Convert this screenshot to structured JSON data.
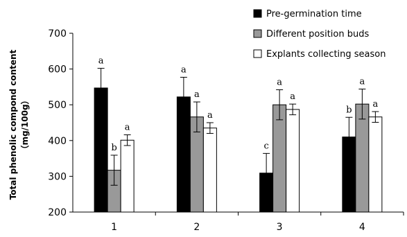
{
  "chart_data": {
    "type": "bar",
    "categories": [
      "1",
      "2",
      "3",
      "4"
    ],
    "ylabel_line1": "Total phenolic compond content",
    "ylabel_line2": "（mg/100g）",
    "ylim": [
      200,
      700
    ],
    "yticks": [
      200,
      300,
      400,
      500,
      600,
      700
    ],
    "grid": false,
    "legend_position": "top-right",
    "series": [
      {
        "name": "Pre-germination time",
        "color": "#000000",
        "values": [
          547,
          522,
          309,
          410
        ],
        "errors": [
          55,
          55,
          55,
          55
        ],
        "labels": [
          "a",
          "a",
          "c",
          "b"
        ]
      },
      {
        "name": "Different position buds",
        "color": "#999999",
        "values": [
          317,
          466,
          500,
          502
        ],
        "errors": [
          42,
          42,
          42,
          42
        ],
        "labels": [
          "b",
          "a",
          "a",
          "a"
        ]
      },
      {
        "name": "Explants collecting season",
        "color": "#ffffff",
        "values": [
          401,
          435,
          487,
          466
        ],
        "errors": [
          15,
          15,
          15,
          15
        ],
        "labels": [
          "a",
          "a",
          "a",
          "a"
        ]
      }
    ]
  }
}
